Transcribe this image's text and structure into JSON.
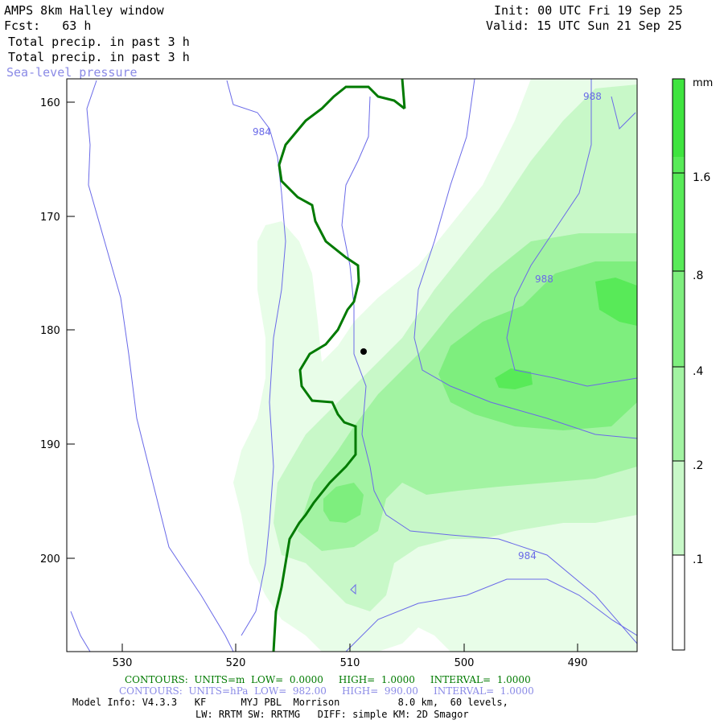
{
  "header": {
    "title": "AMPS 8km Halley window",
    "fcst": "Fcst:   63 h",
    "init": "Init: 00 UTC Fri 19 Sep 25",
    "valid": "Valid: 15 UTC Sun 21 Sep 25",
    "field1": "Total precip. in past 3 h",
    "field2": "Total precip. in past 3 h",
    "field3": "Sea-level pressure"
  },
  "colors": {
    "precip_levels": [
      "#ffffff",
      "#e8fde8",
      "#c8f8c8",
      "#a2f3a2",
      "#7eee7e",
      "#58ea58",
      "#3fe43f"
    ],
    "pressure_line": "#6a6ae8",
    "coast_line": "#007a00"
  },
  "axes": {
    "x_ticks": [
      "530",
      "520",
      "510",
      "500",
      "490"
    ],
    "y_ticks": [
      "160",
      "170",
      "180",
      "190",
      "200"
    ]
  },
  "map": {
    "contour_labels": [
      "984",
      "988",
      "988",
      "984"
    ]
  },
  "colorbar": {
    "unit": "mm",
    "labels": [
      "1.6",
      ".8",
      ".4",
      ".2",
      ".1"
    ]
  },
  "footer": {
    "line1": "CONTOURS:  UNITS=m  LOW=  0.0000     HIGH=  1.0000     INTERVAL=  1.0000",
    "line2": "CONTOURS:  UNITS=hPa  LOW=  982.00     HIGH=  990.00     INTERVAL=  1.0000",
    "line3": "Model Info: V4.3.3   KF      MYJ PBL  Morrison          8.0 km,  60 levels,",
    "line4": "LW: RRTM SW: RRTMG   DIFF: simple KM: 2D Smagor"
  }
}
